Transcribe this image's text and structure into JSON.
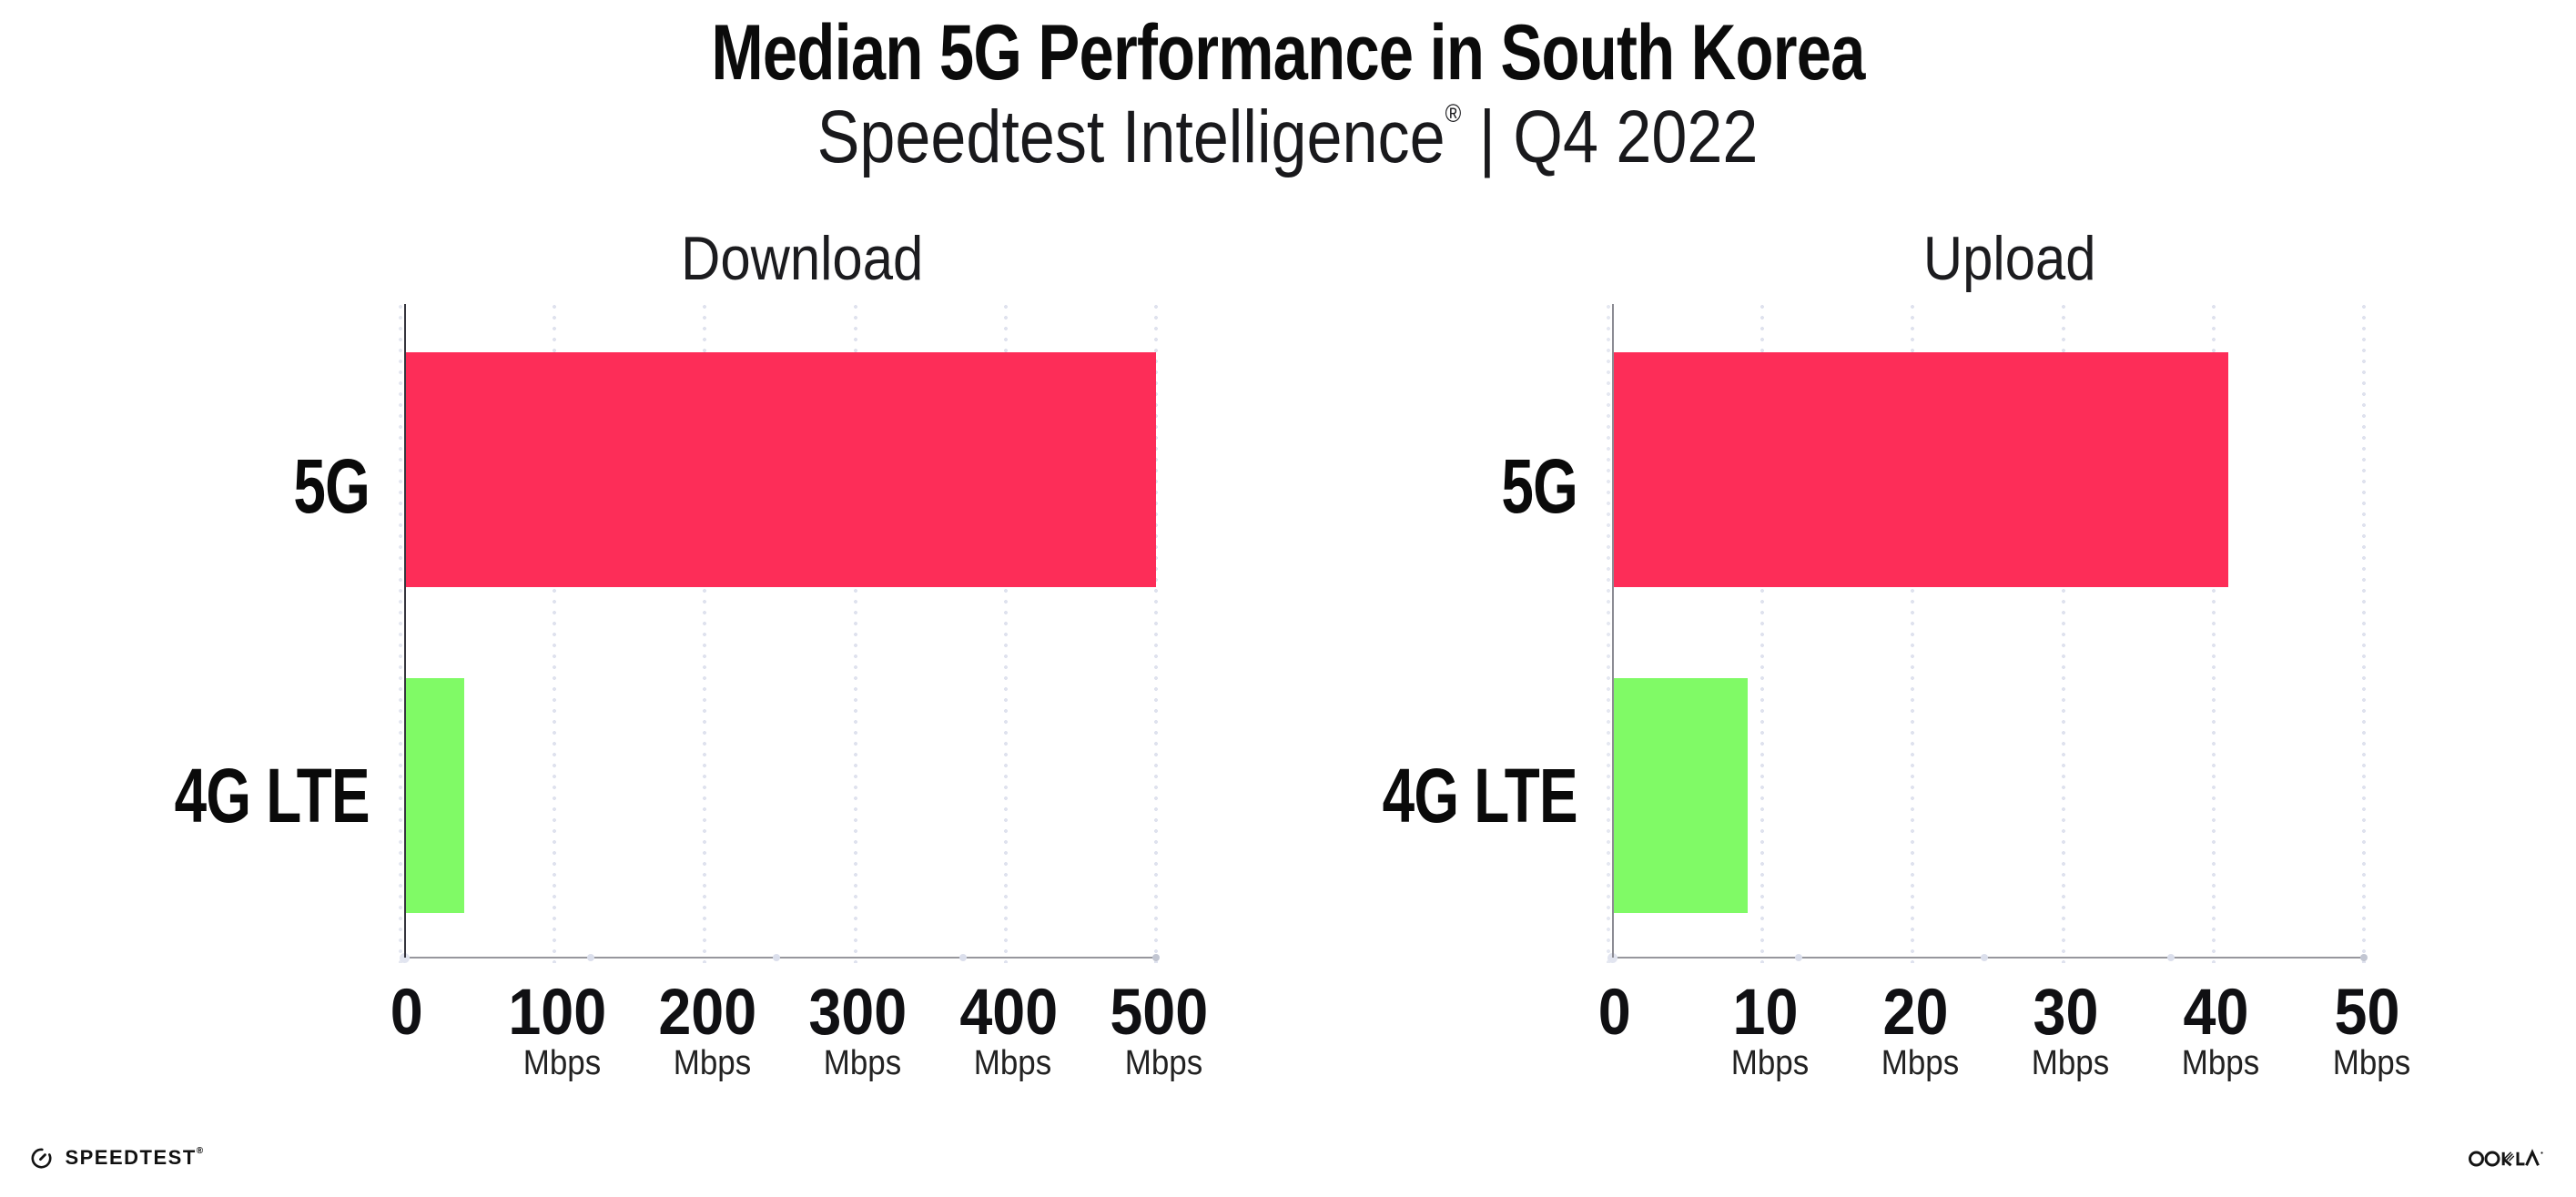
{
  "title": "Median 5G Performance in South Korea",
  "subtitle": {
    "product": "Speedtest Intelligence",
    "registered_mark": "®",
    "divider": "|",
    "period": "Q4 2022"
  },
  "footer": {
    "speedtest_logo_text": "SPEEDTEST",
    "speedtest_registered_mark": "®",
    "ookla_logo_text": "OOKLA",
    "speedtest_icon": "gauge-icon",
    "ookla_icon": "ookla-wordmark"
  },
  "colors": {
    "bar_5g": "#fd2d58",
    "bar_4g": "#80fa66",
    "gridline_dots": "#dfe2ee",
    "axis_line": "#97979d"
  },
  "chart_data": [
    {
      "type": "bar",
      "orientation": "horizontal",
      "title": "Download",
      "categories": [
        "5G",
        "4G LTE"
      ],
      "values": [
        500,
        40
      ],
      "unit": "Mbps",
      "xticks": [
        0,
        100,
        200,
        300,
        400,
        500
      ],
      "xlim": [
        0,
        525
      ],
      "grid": "dotted-vertical",
      "bar_colors": [
        "#fd2d58",
        "#80fa66"
      ]
    },
    {
      "type": "bar",
      "orientation": "horizontal",
      "title": "Upload",
      "categories": [
        "5G",
        "4G LTE"
      ],
      "values": [
        41,
        9
      ],
      "unit": "Mbps",
      "xticks": [
        0,
        10,
        20,
        30,
        40,
        50
      ],
      "xlim": [
        0,
        52.5
      ],
      "grid": "dotted-vertical",
      "bar_colors": [
        "#fd2d58",
        "#80fa66"
      ]
    }
  ]
}
